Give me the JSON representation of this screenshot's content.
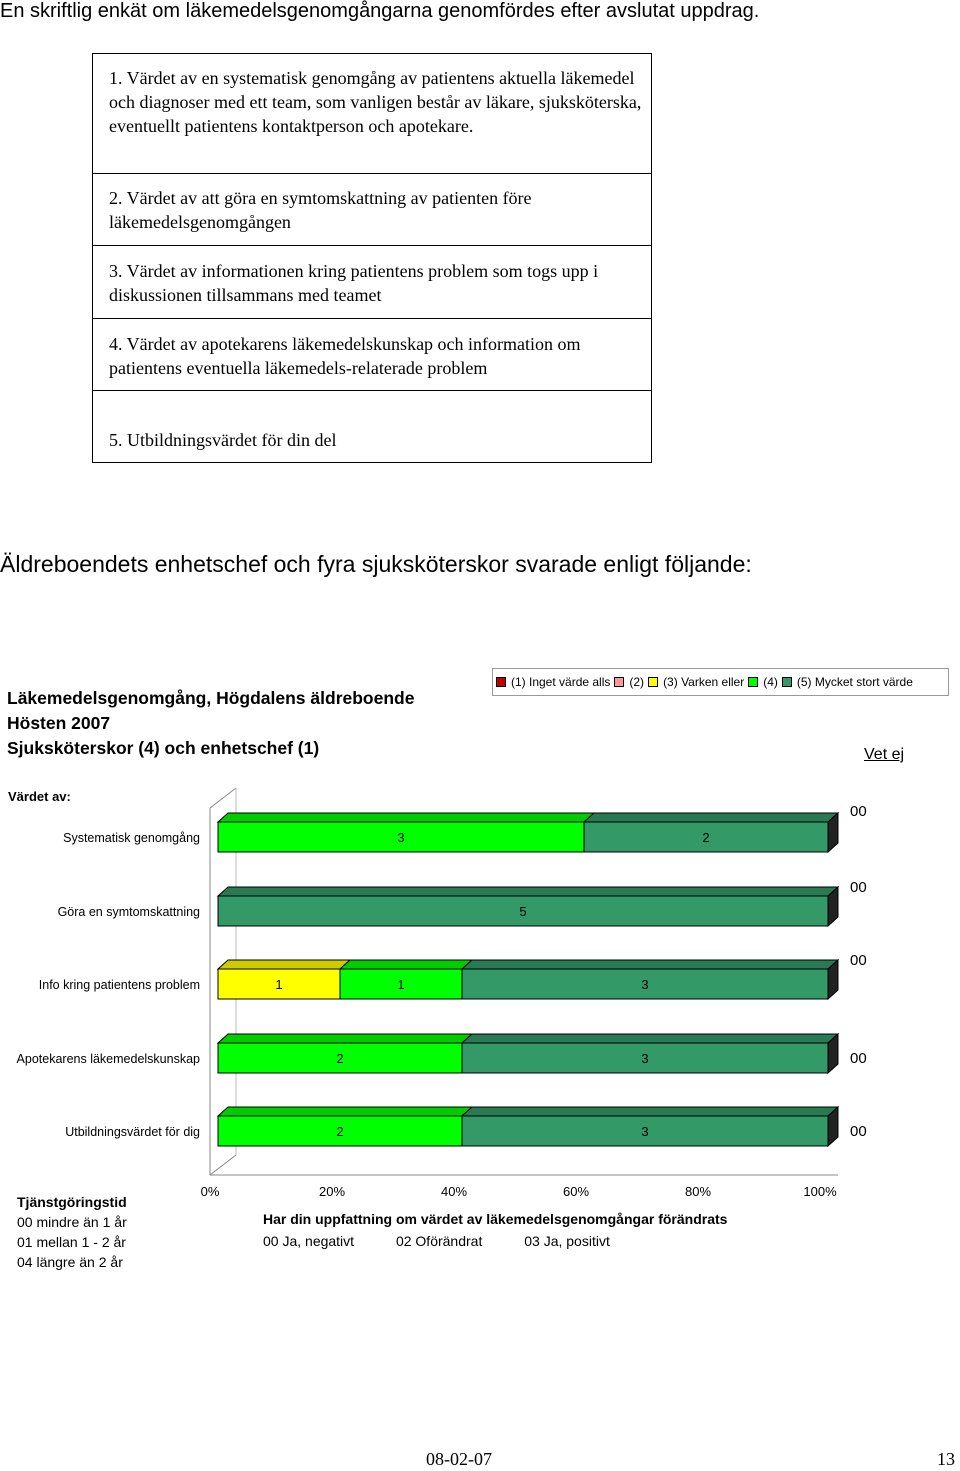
{
  "intro": "En skriftlig enkät om läkemedelsgenomgångarna genomfördes efter avslutat uppdrag.",
  "questions": [
    "1. Värdet av en systematisk genomgång av patientens aktuella läkemedel och diagnoser med ett team, som vanligen består av läkare, sjuksköterska, eventuellt patientens kontaktperson och apotekare.",
    "2. Värdet av att göra en symtomskattning av patienten före läkemedelsgenomgången",
    "3. Värdet av informationen kring patientens problem som togs upp i diskussionen tillsammans med teamet",
    "4. Värdet av apotekarens läkemedelskunskap och information om patientens eventuella läkemedels-relaterade problem",
    "5. Utbildningsvärdet för din del"
  ],
  "answered_heading": "Äldreboendets enhetschef och fyra sjuksköterskor svarade enligt följande:",
  "chart_title": [
    "Läkemedelsgenomgång, Högdalens äldreboende",
    "Hösten 2007",
    "Sjuksköterskor (4) och enhetschef (1)"
  ],
  "legend": {
    "items": [
      {
        "label": "(1) Inget värde alls",
        "color": "#c00000"
      },
      {
        "label": "(2)",
        "color": "#ff9999"
      },
      {
        "label": "(3) Varken eller",
        "color": "#ffff00"
      },
      {
        "label": "(4)",
        "color": "#00ff00"
      },
      {
        "label": "(5) Mycket stort värde",
        "color": "#339966"
      }
    ]
  },
  "vet_ej_header": "Vet ej",
  "row_axis_label": "Värdet av:",
  "chart_data": {
    "type": "bar",
    "stacked": "100%",
    "orientation": "horizontal",
    "categories": [
      "Systematisk genomgång",
      "Göra en symtomskattning",
      "Info kring patientens problem",
      "Apotekarens läkemedelskunskap",
      "Utbildningsvärdet för dig"
    ],
    "series": [
      {
        "name": "(1) Inget värde alls",
        "color": "#c00000",
        "values": [
          0,
          0,
          0,
          0,
          0
        ]
      },
      {
        "name": "(2)",
        "color": "#ff9999",
        "values": [
          0,
          0,
          0,
          0,
          0
        ]
      },
      {
        "name": "(3) Varken eller",
        "color": "#ffff00",
        "values": [
          0,
          0,
          1,
          0,
          0
        ]
      },
      {
        "name": "(4)",
        "color": "#00ff00",
        "values": [
          3,
          0,
          1,
          2,
          2
        ]
      },
      {
        "name": "(5) Mycket stort värde",
        "color": "#339966",
        "values": [
          2,
          5,
          3,
          3,
          3
        ]
      }
    ],
    "bar_labels": [
      [
        "0",
        "3",
        "2"
      ],
      [
        "0",
        "5"
      ],
      [
        "0",
        "1",
        "1",
        "3"
      ],
      [
        "0",
        "2",
        "3"
      ],
      [
        "0",
        "2",
        "3"
      ]
    ],
    "vet_ej": [
      "00",
      "00",
      "00",
      "00",
      "00"
    ],
    "x_ticks": [
      "0%",
      "20%",
      "40%",
      "60%",
      "80%",
      "100%"
    ],
    "xlim": [
      0,
      100
    ]
  },
  "tjanstgoringstid": {
    "heading": "Tjänstgöringstid",
    "lines": [
      "00  mindre än 1 år",
      "01 mellan 1 - 2 år",
      "04 längre än 2 år"
    ]
  },
  "uppfattning": {
    "heading": "Har din uppfattning om värdet av läkemedelsgenomgångar förändrats",
    "options": [
      "00  Ja, negativt",
      "02  Oförändrat",
      "03  Ja, positivt"
    ]
  },
  "footer": {
    "date": "08-02-07",
    "page": "13"
  }
}
